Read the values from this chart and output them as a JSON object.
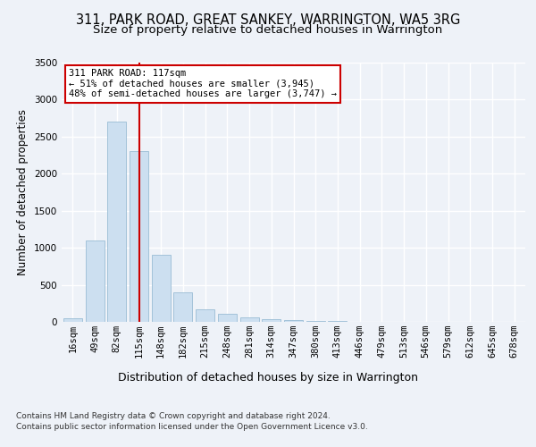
{
  "title": "311, PARK ROAD, GREAT SANKEY, WARRINGTON, WA5 3RG",
  "subtitle": "Size of property relative to detached houses in Warrington",
  "xlabel": "Distribution of detached houses by size in Warrington",
  "ylabel": "Number of detached properties",
  "categories": [
    "16sqm",
    "49sqm",
    "82sqm",
    "115sqm",
    "148sqm",
    "182sqm",
    "215sqm",
    "248sqm",
    "281sqm",
    "314sqm",
    "347sqm",
    "380sqm",
    "413sqm",
    "446sqm",
    "479sqm",
    "513sqm",
    "546sqm",
    "579sqm",
    "612sqm",
    "645sqm",
    "678sqm"
  ],
  "values": [
    50,
    1100,
    2700,
    2300,
    900,
    400,
    175,
    110,
    65,
    40,
    20,
    12,
    8,
    5,
    3,
    2,
    2,
    1,
    1,
    1,
    1
  ],
  "bar_color": "#ccdff0",
  "bar_edgecolor": "#9abcd4",
  "highlight_index": 3,
  "highlight_line_color": "#cc0000",
  "annotation_text": "311 PARK ROAD: 117sqm\n← 51% of detached houses are smaller (3,945)\n48% of semi-detached houses are larger (3,747) →",
  "annotation_box_color": "#ffffff",
  "annotation_box_edgecolor": "#cc0000",
  "background_color": "#eef2f8",
  "axes_background": "#eef2f8",
  "grid_color": "#ffffff",
  "ylim": [
    0,
    3500
  ],
  "title_fontsize": 10.5,
  "subtitle_fontsize": 9.5,
  "xlabel_fontsize": 9,
  "ylabel_fontsize": 8.5,
  "tick_fontsize": 7.5,
  "footer": "Contains HM Land Registry data © Crown copyright and database right 2024.\nContains public sector information licensed under the Open Government Licence v3.0."
}
